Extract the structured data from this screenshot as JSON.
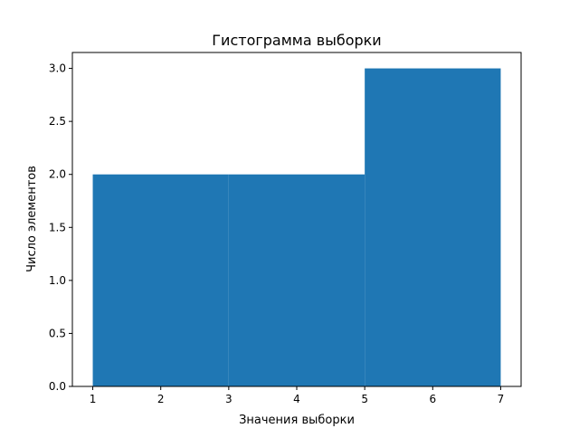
{
  "chart_data": {
    "type": "bar",
    "title": "Гистограмма выборки",
    "xlabel": "Значения выборки",
    "ylabel": "Число элементов",
    "bins": [
      [
        1,
        3
      ],
      [
        3,
        5
      ],
      [
        5,
        7
      ]
    ],
    "values": [
      2,
      2,
      3
    ],
    "xlim": [
      0.7,
      7.3
    ],
    "ylim": [
      0,
      3.15
    ],
    "xticks": [
      "1",
      "2",
      "3",
      "4",
      "5",
      "6",
      "7"
    ],
    "yticks": [
      "0.0",
      "0.5",
      "1.0",
      "1.5",
      "2.0",
      "2.5",
      "3.0"
    ],
    "grid": false,
    "color": "#1f77b4"
  }
}
